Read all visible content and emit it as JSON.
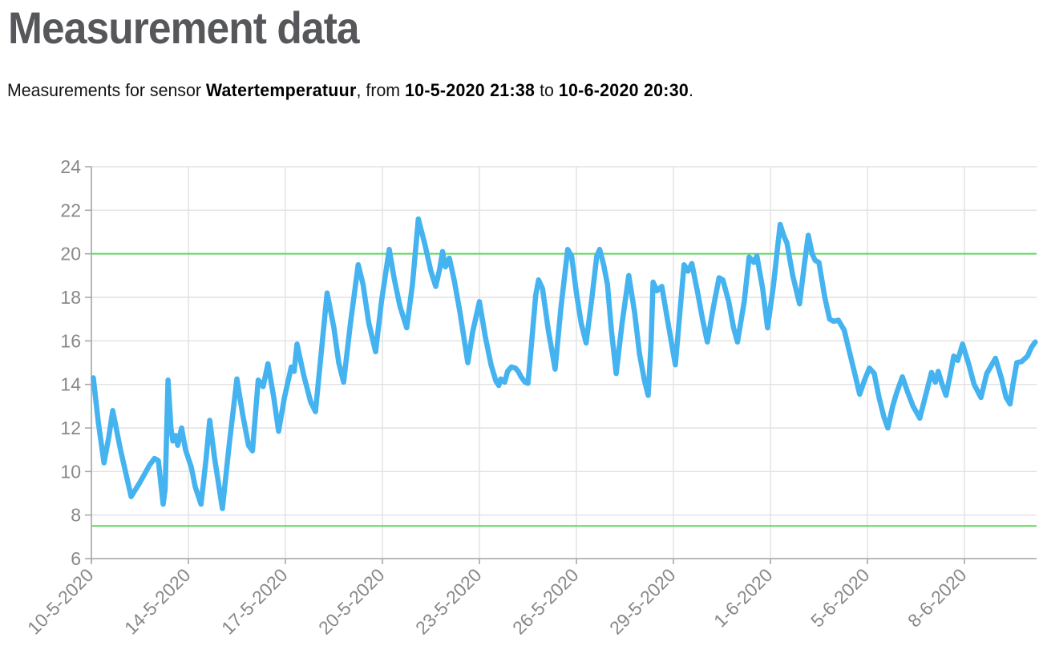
{
  "page": {
    "title": "Measurement data"
  },
  "subtitle": {
    "prefix": "Measurements for sensor ",
    "sensor": "Watertemperatuur",
    "from_label": ", from ",
    "from": "10-5-2020 21:38",
    "to_label": " to ",
    "to": "10-6-2020 20:30",
    "suffix": "."
  },
  "chart_data": {
    "type": "line",
    "title": "",
    "xlabel": "",
    "ylabel": "",
    "grid": true,
    "legend": "none",
    "ylim": [
      6,
      24
    ],
    "y_ticks": [
      6,
      8,
      10,
      12,
      14,
      16,
      18,
      20,
      22,
      24
    ],
    "x_tick_labels": [
      "10-5-2020",
      "14-5-2020",
      "17-5-2020",
      "20-5-2020",
      "23-5-2020",
      "26-5-2020",
      "29-5-2020",
      "1-6-2020",
      "5-6-2020",
      "8-6-2020"
    ],
    "x_tick_units": [
      0,
      1,
      2,
      3,
      4,
      5,
      6,
      7,
      8,
      9
    ],
    "x_range": [
      0,
      9.75
    ],
    "thresholds": [
      {
        "name": "upper-limit",
        "value": 20,
        "color": "#5fd75f"
      },
      {
        "name": "lower-limit",
        "value": 7.5,
        "color": "#5fd75f"
      }
    ],
    "colors": {
      "line": "#44b3ef",
      "gridline": "#e2e2e2",
      "axis": "#a8a8a8",
      "tick_label": "#87888a"
    },
    "series": [
      {
        "name": "Watertemperatuur",
        "points": [
          [
            0.02,
            14.3
          ],
          [
            0.07,
            12.3
          ],
          [
            0.13,
            10.4
          ],
          [
            0.18,
            11.6
          ],
          [
            0.22,
            12.8
          ],
          [
            0.3,
            11.0
          ],
          [
            0.41,
            8.85
          ],
          [
            0.5,
            9.5
          ],
          [
            0.6,
            10.3
          ],
          [
            0.65,
            10.6
          ],
          [
            0.69,
            10.5
          ],
          [
            0.74,
            8.5
          ],
          [
            0.76,
            9.2
          ],
          [
            0.79,
            14.2
          ],
          [
            0.82,
            12.0
          ],
          [
            0.84,
            11.4
          ],
          [
            0.87,
            11.65
          ],
          [
            0.89,
            11.2
          ],
          [
            0.93,
            12.0
          ],
          [
            0.97,
            11.0
          ],
          [
            1.03,
            10.2
          ],
          [
            1.07,
            9.3
          ],
          [
            1.13,
            8.5
          ],
          [
            1.18,
            10.5
          ],
          [
            1.22,
            12.35
          ],
          [
            1.27,
            10.6
          ],
          [
            1.35,
            8.3
          ],
          [
            1.42,
            11.2
          ],
          [
            1.5,
            14.25
          ],
          [
            1.56,
            12.6
          ],
          [
            1.62,
            11.2
          ],
          [
            1.66,
            10.95
          ],
          [
            1.72,
            14.2
          ],
          [
            1.77,
            13.9
          ],
          [
            1.82,
            14.95
          ],
          [
            1.88,
            13.4
          ],
          [
            1.93,
            11.85
          ],
          [
            1.99,
            13.4
          ],
          [
            2.06,
            14.8
          ],
          [
            2.09,
            14.6
          ],
          [
            2.12,
            15.85
          ],
          [
            2.19,
            14.4
          ],
          [
            2.26,
            13.2
          ],
          [
            2.31,
            12.75
          ],
          [
            2.37,
            15.5
          ],
          [
            2.43,
            18.2
          ],
          [
            2.5,
            16.6
          ],
          [
            2.55,
            15.0
          ],
          [
            2.6,
            14.1
          ],
          [
            2.67,
            16.8
          ],
          [
            2.75,
            19.5
          ],
          [
            2.8,
            18.6
          ],
          [
            2.86,
            16.8
          ],
          [
            2.93,
            15.5
          ],
          [
            2.99,
            17.8
          ],
          [
            3.07,
            20.2
          ],
          [
            3.12,
            18.9
          ],
          [
            3.18,
            17.6
          ],
          [
            3.25,
            16.6
          ],
          [
            3.31,
            18.6
          ],
          [
            3.37,
            21.6
          ],
          [
            3.44,
            20.4
          ],
          [
            3.5,
            19.2
          ],
          [
            3.55,
            18.5
          ],
          [
            3.59,
            19.3
          ],
          [
            3.62,
            20.1
          ],
          [
            3.65,
            19.4
          ],
          [
            3.69,
            19.8
          ],
          [
            3.74,
            18.8
          ],
          [
            3.8,
            17.3
          ],
          [
            3.88,
            15.0
          ],
          [
            3.93,
            16.4
          ],
          [
            4.0,
            17.8
          ],
          [
            4.06,
            16.2
          ],
          [
            4.12,
            14.9
          ],
          [
            4.17,
            14.15
          ],
          [
            4.2,
            13.95
          ],
          [
            4.22,
            14.25
          ],
          [
            4.26,
            14.1
          ],
          [
            4.29,
            14.6
          ],
          [
            4.33,
            14.8
          ],
          [
            4.37,
            14.75
          ],
          [
            4.4,
            14.6
          ],
          [
            4.43,
            14.35
          ],
          [
            4.47,
            14.1
          ],
          [
            4.5,
            14.05
          ],
          [
            4.54,
            16.0
          ],
          [
            4.58,
            18.1
          ],
          [
            4.61,
            18.8
          ],
          [
            4.65,
            18.4
          ],
          [
            4.71,
            16.5
          ],
          [
            4.78,
            14.7
          ],
          [
            4.84,
            17.5
          ],
          [
            4.91,
            20.2
          ],
          [
            4.95,
            19.9
          ],
          [
            5.0,
            18.2
          ],
          [
            5.05,
            16.8
          ],
          [
            5.1,
            15.9
          ],
          [
            5.16,
            18.0
          ],
          [
            5.21,
            19.9
          ],
          [
            5.24,
            20.2
          ],
          [
            5.28,
            19.5
          ],
          [
            5.32,
            18.6
          ],
          [
            5.36,
            16.5
          ],
          [
            5.41,
            14.5
          ],
          [
            5.47,
            16.8
          ],
          [
            5.54,
            19.0
          ],
          [
            5.6,
            17.3
          ],
          [
            5.65,
            15.4
          ],
          [
            5.7,
            14.2
          ],
          [
            5.74,
            13.5
          ],
          [
            5.77,
            16.0
          ],
          [
            5.79,
            18.7
          ],
          [
            5.83,
            18.3
          ],
          [
            5.88,
            18.5
          ],
          [
            5.93,
            17.2
          ],
          [
            5.98,
            15.9
          ],
          [
            6.02,
            14.9
          ],
          [
            6.07,
            17.5
          ],
          [
            6.11,
            19.5
          ],
          [
            6.15,
            19.2
          ],
          [
            6.19,
            19.55
          ],
          [
            6.25,
            18.2
          ],
          [
            6.3,
            17.0
          ],
          [
            6.35,
            15.95
          ],
          [
            6.41,
            17.5
          ],
          [
            6.47,
            18.9
          ],
          [
            6.51,
            18.8
          ],
          [
            6.57,
            17.8
          ],
          [
            6.62,
            16.6
          ],
          [
            6.66,
            15.95
          ],
          [
            6.73,
            17.8
          ],
          [
            6.78,
            19.85
          ],
          [
            6.83,
            19.6
          ],
          [
            6.86,
            19.9
          ],
          [
            6.92,
            18.4
          ],
          [
            6.97,
            16.6
          ],
          [
            7.03,
            18.5
          ],
          [
            7.1,
            21.35
          ],
          [
            7.14,
            20.8
          ],
          [
            7.17,
            20.5
          ],
          [
            7.23,
            19.0
          ],
          [
            7.3,
            17.7
          ],
          [
            7.35,
            19.5
          ],
          [
            7.39,
            20.85
          ],
          [
            7.43,
            20.0
          ],
          [
            7.46,
            19.7
          ],
          [
            7.5,
            19.6
          ],
          [
            7.56,
            18.0
          ],
          [
            7.61,
            17.0
          ],
          [
            7.65,
            16.9
          ],
          [
            7.7,
            16.95
          ],
          [
            7.76,
            16.5
          ],
          [
            7.82,
            15.4
          ],
          [
            7.88,
            14.3
          ],
          [
            7.92,
            13.55
          ],
          [
            7.97,
            14.2
          ],
          [
            8.02,
            14.75
          ],
          [
            8.07,
            14.5
          ],
          [
            8.12,
            13.4
          ],
          [
            8.17,
            12.5
          ],
          [
            8.21,
            12.0
          ],
          [
            8.26,
            13.0
          ],
          [
            8.3,
            13.6
          ],
          [
            8.36,
            14.35
          ],
          [
            8.41,
            13.7
          ],
          [
            8.47,
            13.0
          ],
          [
            8.54,
            12.45
          ],
          [
            8.6,
            13.5
          ],
          [
            8.66,
            14.55
          ],
          [
            8.7,
            14.1
          ],
          [
            8.73,
            14.6
          ],
          [
            8.77,
            14.0
          ],
          [
            8.81,
            13.5
          ],
          [
            8.86,
            14.6
          ],
          [
            8.89,
            15.3
          ],
          [
            8.93,
            15.1
          ],
          [
            8.98,
            15.85
          ],
          [
            9.04,
            15.0
          ],
          [
            9.1,
            14.0
          ],
          [
            9.17,
            13.4
          ],
          [
            9.23,
            14.5
          ],
          [
            9.32,
            15.2
          ],
          [
            9.38,
            14.3
          ],
          [
            9.43,
            13.4
          ],
          [
            9.47,
            13.1
          ],
          [
            9.5,
            14.0
          ],
          [
            9.54,
            15.0
          ],
          [
            9.59,
            15.05
          ],
          [
            9.65,
            15.3
          ],
          [
            9.69,
            15.7
          ],
          [
            9.73,
            15.95
          ]
        ]
      }
    ]
  }
}
